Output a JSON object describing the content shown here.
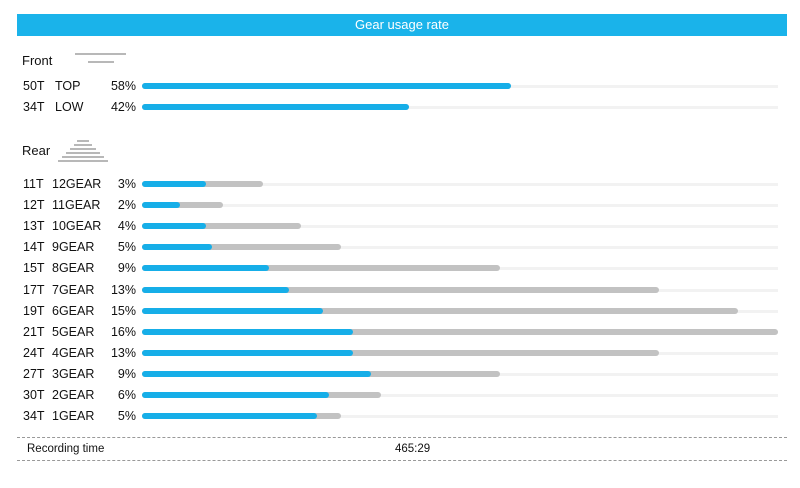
{
  "chart_data": {
    "type": "bar",
    "title": "Gear usage rate",
    "front": {
      "label": "Front",
      "gears": [
        {
          "teeth": "50T",
          "name": "TOP",
          "pct_label": "58%",
          "usage": 58,
          "grey_extent": 58
        },
        {
          "teeth": "34T",
          "name": "LOW",
          "pct_label": "42%",
          "usage": 42,
          "grey_extent": 42
        }
      ]
    },
    "rear": {
      "label": "Rear",
      "gears": [
        {
          "teeth": "11T",
          "name": "12GEAR",
          "pct_label": "3%",
          "usage": 3,
          "blue_extent": 3.2,
          "grey_extent": 6.1
        },
        {
          "teeth": "12T",
          "name": "11GEAR",
          "pct_label": "2%",
          "usage": 2,
          "blue_extent": 1.9,
          "grey_extent": 4.1
        },
        {
          "teeth": "13T",
          "name": "10GEAR",
          "pct_label": "4%",
          "usage": 4,
          "blue_extent": 3.2,
          "grey_extent": 8.0
        },
        {
          "teeth": "14T",
          "name": "9GEAR",
          "pct_label": "5%",
          "usage": 5,
          "blue_extent": 3.5,
          "grey_extent": 10.0
        },
        {
          "teeth": "15T",
          "name": "8GEAR",
          "pct_label": "9%",
          "usage": 9,
          "blue_extent": 6.4,
          "grey_extent": 18.0
        },
        {
          "teeth": "17T",
          "name": "7GEAR",
          "pct_label": "13%",
          "usage": 13,
          "blue_extent": 7.4,
          "grey_extent": 26.0
        },
        {
          "teeth": "19T",
          "name": "6GEAR",
          "pct_label": "15%",
          "usage": 15,
          "blue_extent": 9.1,
          "grey_extent": 30.0
        },
        {
          "teeth": "21T",
          "name": "5GEAR",
          "pct_label": "16%",
          "usage": 16,
          "blue_extent": 10.6,
          "grey_extent": 32.0
        },
        {
          "teeth": "24T",
          "name": "4GEAR",
          "pct_label": "13%",
          "usage": 13,
          "blue_extent": 10.6,
          "grey_extent": 26.0
        },
        {
          "teeth": "27T",
          "name": "3GEAR",
          "pct_label": "9%",
          "usage": 9,
          "blue_extent": 11.5,
          "grey_extent": 18.0
        },
        {
          "teeth": "30T",
          "name": "2GEAR",
          "pct_label": "6%",
          "usage": 6,
          "blue_extent": 9.4,
          "grey_extent": 12.0
        },
        {
          "teeth": "34T",
          "name": "1GEAR",
          "pct_label": "5%",
          "usage": 5,
          "blue_extent": 8.8,
          "grey_extent": 10.0
        }
      ]
    },
    "scale": {
      "front_max": 100,
      "rear_max": 32
    }
  },
  "colors": {
    "header": "#1ab3ea",
    "bar_blue": "#16aee8",
    "bar_grey": "#c2c2c2"
  },
  "icons": {
    "front": "front-chainring-icon",
    "rear": "rear-cassette-icon"
  },
  "footer": {
    "label": "Recording time",
    "value": "465:29"
  }
}
